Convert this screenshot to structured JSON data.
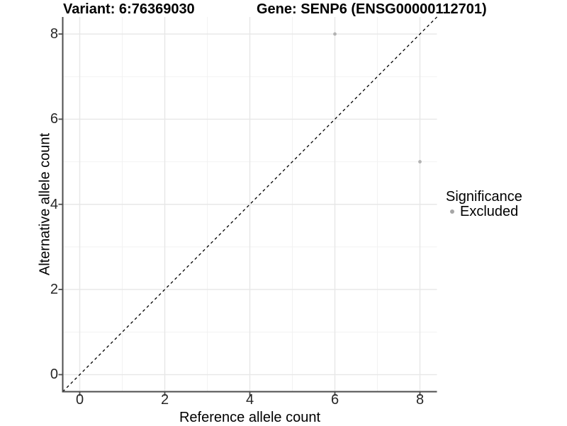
{
  "chart_data": {
    "type": "scatter",
    "titles": [
      "Variant: 6:76369030",
      "Gene: SENP6 (ENSG00000112701)"
    ],
    "xlabel": "Reference allele count",
    "ylabel": "Alternative allele count",
    "xlim": [
      -0.4,
      8.4
    ],
    "ylim": [
      -0.4,
      8.4
    ],
    "x_ticks": [
      0,
      2,
      4,
      6,
      8
    ],
    "y_ticks": [
      0,
      2,
      4,
      6,
      8
    ],
    "x_minor_ticks": [
      1,
      3,
      5,
      7
    ],
    "y_minor_ticks": [
      1,
      3,
      5,
      7
    ],
    "grid": "on",
    "identity_line": {
      "equation": "y = x",
      "style": "dashed",
      "color": "#000000"
    },
    "series": [
      {
        "name": "Excluded",
        "color": "#b3b3b3",
        "points": [
          [
            6,
            8
          ],
          [
            8,
            5
          ]
        ]
      }
    ],
    "legend": {
      "title": "Significance",
      "position": "right",
      "items": [
        {
          "label": "Excluded",
          "color": "#a6a6a6"
        }
      ]
    },
    "colors": {
      "background": "#ffffff",
      "grid_major": "#e7e7e7",
      "grid_minor": "#f2f2f2",
      "axis_line": "#4d4d4d",
      "tick_mark": "#4d4d4d",
      "tick_label": "#262626"
    }
  }
}
